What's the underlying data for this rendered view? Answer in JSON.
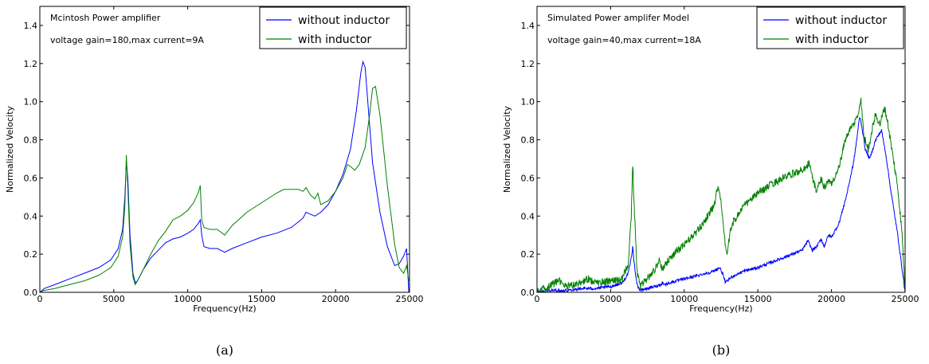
{
  "chart_data": [
    {
      "type": "line",
      "caption": "(a)",
      "annotations": [
        "Mcintosh Power amplifier",
        "voltage gain=180,max current=9A"
      ],
      "xlabel": "Frequency(Hz)",
      "ylabel": "Normalized Velocity",
      "xlim": [
        0,
        25000
      ],
      "ylim": [
        0,
        1.5
      ],
      "xticks": [
        0,
        5000,
        10000,
        15000,
        20000,
        25000
      ],
      "yticks": [
        0.0,
        0.2,
        0.4,
        0.6,
        0.8,
        1.0,
        1.2,
        1.4
      ],
      "grid": false,
      "legend_position": "top-right",
      "series": [
        {
          "name": "without inductor",
          "color": "#0000ff",
          "noise": 0,
          "x": [
            0,
            300,
            1000,
            2000,
            3000,
            4000,
            4800,
            5300,
            5600,
            5750,
            5850,
            5950,
            6100,
            6300,
            6450,
            6600,
            7000,
            7500,
            8000,
            8500,
            9000,
            9500,
            10000,
            10400,
            10700,
            10850,
            10950,
            11100,
            11500,
            12000,
            12500,
            13000,
            14000,
            15000,
            16000,
            17000,
            17500,
            17800,
            18000,
            18300,
            18600,
            19000,
            19500,
            20000,
            20500,
            21000,
            21400,
            21700,
            21850,
            22000,
            22200,
            22500,
            23000,
            23500,
            24000,
            24300,
            24600,
            24800,
            24950
          ],
          "y": [
            0.0,
            0.02,
            0.04,
            0.07,
            0.1,
            0.13,
            0.17,
            0.23,
            0.33,
            0.5,
            0.68,
            0.6,
            0.3,
            0.1,
            0.05,
            0.06,
            0.12,
            0.18,
            0.22,
            0.26,
            0.28,
            0.29,
            0.31,
            0.33,
            0.36,
            0.38,
            0.3,
            0.24,
            0.23,
            0.23,
            0.21,
            0.23,
            0.26,
            0.29,
            0.31,
            0.34,
            0.37,
            0.39,
            0.42,
            0.41,
            0.4,
            0.42,
            0.46,
            0.53,
            0.62,
            0.75,
            0.95,
            1.15,
            1.21,
            1.18,
            0.98,
            0.68,
            0.42,
            0.24,
            0.14,
            0.15,
            0.19,
            0.23,
            0.0
          ]
        },
        {
          "name": "with inductor",
          "color": "#008000",
          "noise": 0,
          "x": [
            0,
            300,
            1000,
            2000,
            3000,
            4000,
            4800,
            5300,
            5600,
            5750,
            5850,
            5950,
            6100,
            6300,
            6450,
            6600,
            7000,
            7500,
            8000,
            8500,
            9000,
            9500,
            10000,
            10400,
            10700,
            10850,
            10950,
            11100,
            11500,
            12000,
            12500,
            13000,
            14000,
            15000,
            16000,
            16500,
            17000,
            17500,
            17800,
            18000,
            18300,
            18600,
            18800,
            19000,
            19500,
            20000,
            20500,
            20800,
            21000,
            21300,
            21600,
            22000,
            22300,
            22500,
            22700,
            23000,
            23500,
            24000,
            24300,
            24600,
            24800,
            24950
          ],
          "y": [
            0.0,
            0.01,
            0.02,
            0.04,
            0.06,
            0.09,
            0.13,
            0.19,
            0.29,
            0.45,
            0.72,
            0.55,
            0.25,
            0.08,
            0.04,
            0.06,
            0.12,
            0.2,
            0.27,
            0.32,
            0.38,
            0.4,
            0.43,
            0.47,
            0.52,
            0.56,
            0.38,
            0.34,
            0.33,
            0.33,
            0.3,
            0.35,
            0.42,
            0.47,
            0.52,
            0.54,
            0.54,
            0.54,
            0.53,
            0.55,
            0.51,
            0.49,
            0.52,
            0.46,
            0.48,
            0.53,
            0.6,
            0.67,
            0.66,
            0.64,
            0.67,
            0.76,
            0.93,
            1.07,
            1.08,
            0.93,
            0.56,
            0.25,
            0.13,
            0.1,
            0.14,
            0.06
          ]
        }
      ]
    },
    {
      "type": "line",
      "caption": "(b)",
      "annotations": [
        "Simulated Power amplifer Model",
        "voltage gain=40,max current=18A"
      ],
      "xlabel": "Frequency(Hz)",
      "ylabel": "Normalized Velocity",
      "xlim": [
        0,
        25000
      ],
      "ylim": [
        0,
        1.5
      ],
      "xticks": [
        0,
        5000,
        10000,
        15000,
        20000,
        25000
      ],
      "yticks": [
        0.0,
        0.2,
        0.4,
        0.6,
        0.8,
        1.0,
        1.2,
        1.4
      ],
      "grid": false,
      "legend_position": "top-right",
      "series": [
        {
          "name": "without inductor",
          "color": "#0000ff",
          "noise": 0.008,
          "x": [
            0,
            1000,
            2000,
            3000,
            4000,
            5000,
            5800,
            6200,
            6400,
            6500,
            6600,
            6800,
            7000,
            7500,
            8000,
            8400,
            8500,
            8700,
            9000,
            10000,
            11000,
            12000,
            12400,
            12600,
            12800,
            13200,
            14000,
            15000,
            16000,
            17000,
            18000,
            18400,
            18700,
            19000,
            19300,
            19500,
            19800,
            20000,
            20500,
            21000,
            21500,
            21800,
            21900,
            22000,
            22300,
            22600,
            22800,
            23000,
            23400,
            23700,
            24000,
            24500,
            24800,
            25000
          ],
          "y": [
            0.0,
            0.01,
            0.01,
            0.02,
            0.02,
            0.03,
            0.05,
            0.1,
            0.18,
            0.24,
            0.15,
            0.04,
            0.01,
            0.02,
            0.03,
            0.04,
            0.05,
            0.04,
            0.05,
            0.07,
            0.09,
            0.11,
            0.13,
            0.1,
            0.05,
            0.08,
            0.11,
            0.13,
            0.16,
            0.19,
            0.22,
            0.27,
            0.22,
            0.24,
            0.28,
            0.24,
            0.3,
            0.29,
            0.36,
            0.5,
            0.68,
            0.85,
            0.92,
            0.9,
            0.75,
            0.7,
            0.75,
            0.8,
            0.85,
            0.72,
            0.55,
            0.3,
            0.12,
            0.0
          ]
        },
        {
          "name": "with inductor",
          "color": "#008000",
          "noise": 0.02,
          "x": [
            0,
            500,
            1000,
            1500,
            2000,
            3000,
            3500,
            4000,
            5000,
            5800,
            6200,
            6400,
            6500,
            6600,
            6800,
            7000,
            7500,
            8000,
            8300,
            8500,
            8700,
            9000,
            10000,
            11000,
            12000,
            12300,
            12500,
            12700,
            12900,
            13200,
            14000,
            15000,
            16000,
            17000,
            18000,
            18500,
            18700,
            19000,
            19300,
            19500,
            19800,
            20000,
            20500,
            21000,
            21500,
            21800,
            22000,
            22200,
            22500,
            22800,
            23000,
            23300,
            23600,
            23800,
            24000,
            24500,
            24800,
            25000
          ],
          "y": [
            0.0,
            0.02,
            0.04,
            0.06,
            0.03,
            0.05,
            0.07,
            0.05,
            0.06,
            0.07,
            0.15,
            0.4,
            0.68,
            0.45,
            0.1,
            0.03,
            0.07,
            0.12,
            0.17,
            0.12,
            0.14,
            0.18,
            0.25,
            0.33,
            0.45,
            0.56,
            0.48,
            0.3,
            0.2,
            0.35,
            0.45,
            0.52,
            0.57,
            0.61,
            0.64,
            0.68,
            0.6,
            0.53,
            0.6,
            0.55,
            0.58,
            0.57,
            0.65,
            0.82,
            0.88,
            0.93,
            1.01,
            0.82,
            0.75,
            0.87,
            0.93,
            0.88,
            0.97,
            0.9,
            0.8,
            0.55,
            0.3,
            0.0
          ]
        }
      ]
    }
  ]
}
